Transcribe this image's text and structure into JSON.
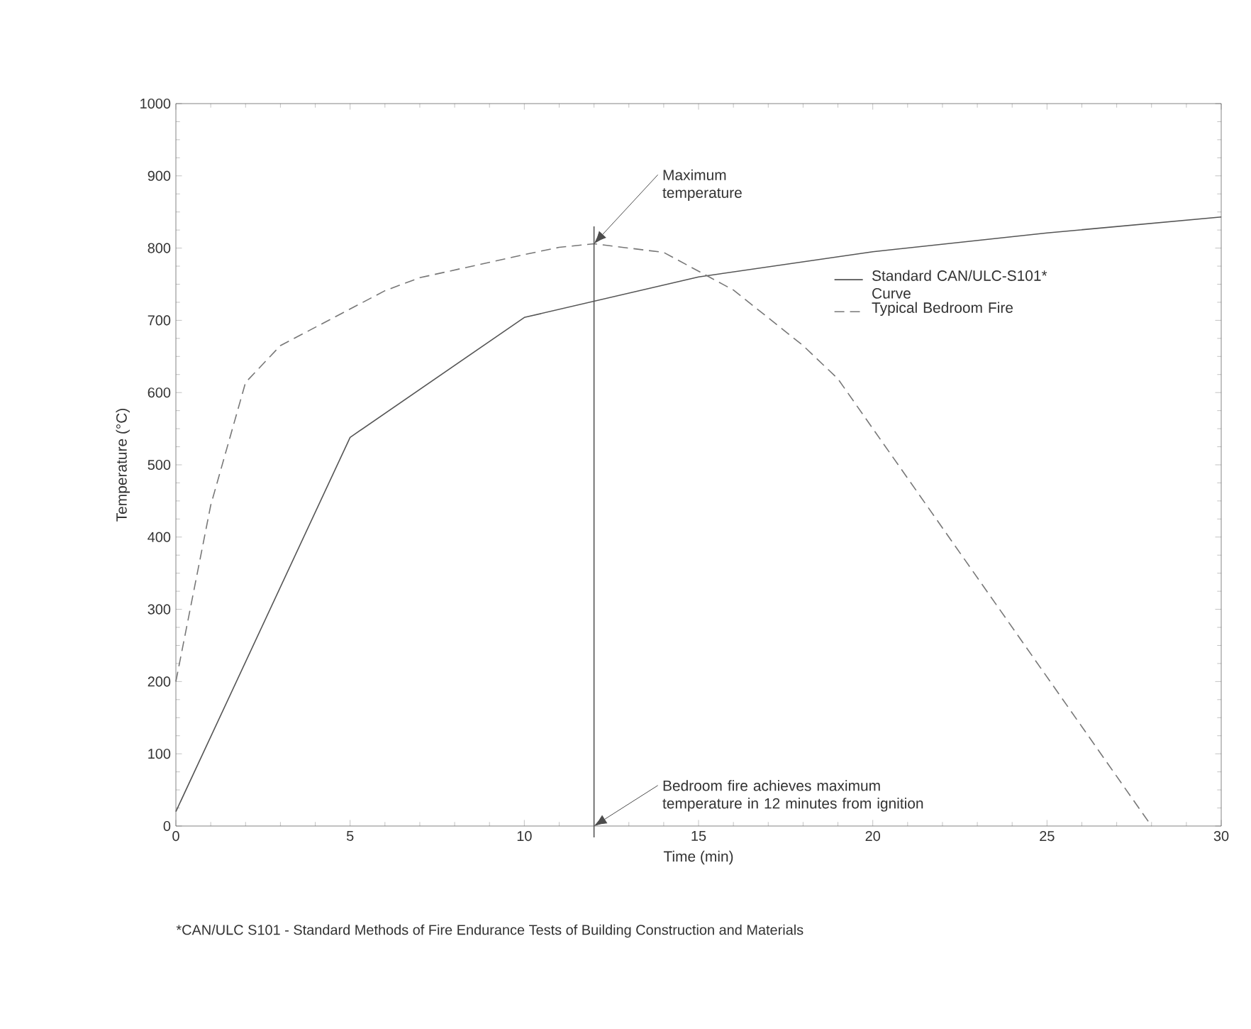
{
  "chart_data": {
    "type": "line",
    "xlabel": "Time (min)",
    "ylabel": "Temperature (°C)",
    "xlim": [
      0,
      30
    ],
    "xticks": [
      0,
      5,
      10,
      15,
      20,
      25,
      30
    ],
    "ylim": [
      0,
      1000
    ],
    "yticks": [
      0,
      100,
      200,
      300,
      400,
      500,
      600,
      700,
      800,
      900,
      1000
    ],
    "legend": "right",
    "grid": false,
    "series": [
      {
        "name": "Standard CAN/ULC-S101* Curve",
        "color": "#555555",
        "line_style": "solid",
        "x": [
          0,
          5,
          10,
          15,
          20,
          25,
          30
        ],
        "values": [
          20,
          538,
          704,
          760,
          795,
          821,
          843
        ]
      },
      {
        "name": "Typical Bedroom Fire",
        "color": "#777777",
        "line_style": "dashed",
        "x": [
          0,
          1,
          2,
          3,
          6,
          7,
          10,
          11,
          12,
          14,
          15,
          16,
          18,
          19,
          28
        ],
        "values": [
          200,
          444,
          614,
          665,
          741,
          759,
          791,
          801,
          806,
          794,
          768,
          742,
          665,
          619,
          0
        ]
      }
    ],
    "ref_lines": [
      {
        "axis": "x",
        "value": 12,
        "color": "#555555"
      }
    ],
    "annotations": [
      {
        "text": "Maximum temperature",
        "x": 12,
        "y": 806
      },
      {
        "text": "Bedroom fire achieves maximum temperature in 12 minutes from ignition",
        "x": 12,
        "y": 0
      },
      "*CAN/ULC S101 - Standard Methods of Fire Endurance Tests of Building Construction and Materials"
    ]
  }
}
